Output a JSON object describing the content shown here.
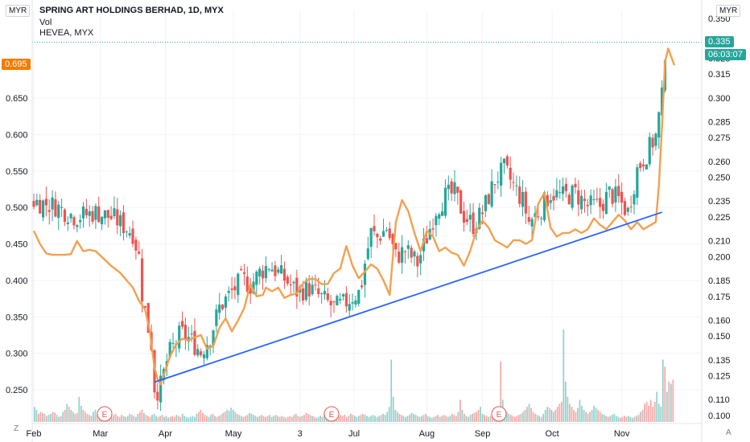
{
  "header": {
    "title": "SPRING ART HOLDINGS BERHAD, 1D, MYX",
    "volume_label": "Vol",
    "compare_label": "HEVEA, MYX"
  },
  "axes": {
    "left_currency": "MYR",
    "right_currency": "MYR",
    "corner_left": "Z",
    "corner_right": "A"
  },
  "badges": {
    "left_compare_price": "0.695",
    "right_price": "0.335",
    "countdown": "06:03:07",
    "compare_color": "#f57c00",
    "price_color": "#26a69a"
  },
  "chart_data": {
    "type": "candlestick",
    "left_axis": {
      "label": "HEVEA, MYX",
      "ticks": [
        0.25,
        0.3,
        0.35,
        0.4,
        0.45,
        0.5,
        0.55,
        0.6,
        0.65
      ],
      "ylim": [
        0.22,
        0.755
      ]
    },
    "right_axis": {
      "label": "SPRING ART",
      "ticks": [
        0.1,
        0.11,
        0.125,
        0.135,
        0.15,
        0.16,
        0.175,
        0.185,
        0.2,
        0.21,
        0.225,
        0.235,
        0.25,
        0.26,
        0.275,
        0.285,
        0.3,
        0.315,
        0.325,
        0.335,
        0.35
      ],
      "ylim": [
        0.0942,
        0.3548
      ]
    },
    "x_ticks": [
      "Feb",
      "Mar",
      "Apr",
      "May",
      "3",
      "Jul",
      "Aug",
      "Sep",
      "Oct",
      "Nov"
    ],
    "series": [
      {
        "name": "SPRING ART HOLDINGS BERHAD",
        "up_color": "#26a69a",
        "down_color": "#ef5350",
        "close_path": [
          [
            0,
            0.235
          ],
          [
            14,
            0.232
          ],
          [
            27,
            0.225
          ],
          [
            40,
            0.228
          ],
          [
            52,
            0.224
          ],
          [
            64,
            0.215
          ],
          [
            68,
            0.2
          ],
          [
            70,
            0.177
          ],
          [
            73,
            0.16
          ],
          [
            76,
            0.145
          ],
          [
            78,
            0.118
          ],
          [
            81,
            0.115
          ],
          [
            87,
            0.138
          ],
          [
            95,
            0.152
          ],
          [
            101,
            0.148
          ],
          [
            108,
            0.14
          ],
          [
            114,
            0.15
          ],
          [
            120,
            0.168
          ],
          [
            128,
            0.178
          ],
          [
            135,
            0.186
          ],
          [
            140,
            0.182
          ],
          [
            146,
            0.19
          ],
          [
            152,
            0.195
          ],
          [
            160,
            0.188
          ],
          [
            170,
            0.178
          ],
          [
            178,
            0.18
          ],
          [
            186,
            0.174
          ],
          [
            194,
            0.168
          ],
          [
            200,
            0.17
          ],
          [
            206,
            0.175
          ],
          [
            211,
            0.178
          ],
          [
            214,
            0.196
          ],
          [
            218,
            0.215
          ],
          [
            222,
            0.212
          ],
          [
            228,
            0.218
          ],
          [
            234,
            0.2
          ],
          [
            240,
            0.204
          ],
          [
            248,
            0.196
          ],
          [
            254,
            0.212
          ],
          [
            260,
            0.23
          ],
          [
            266,
            0.238
          ],
          [
            272,
            0.24
          ],
          [
            278,
            0.226
          ],
          [
            284,
            0.22
          ],
          [
            290,
            0.228
          ],
          [
            298,
            0.248
          ],
          [
            304,
            0.255
          ],
          [
            310,
            0.245
          ],
          [
            316,
            0.235
          ],
          [
            320,
            0.222
          ],
          [
            326,
            0.228
          ],
          [
            334,
            0.24
          ],
          [
            342,
            0.238
          ],
          [
            350,
            0.24
          ],
          [
            358,
            0.232
          ],
          [
            366,
            0.232
          ],
          [
            372,
            0.24
          ],
          [
            378,
            0.236
          ],
          [
            384,
            0.228
          ],
          [
            390,
            0.255
          ],
          [
            396,
            0.265
          ],
          [
            402,
            0.276
          ],
          [
            406,
            0.3
          ],
          [
            408,
            0.33
          ]
        ]
      },
      {
        "name": "HEVEA, MYX",
        "color": "#f4a04f",
        "values": [
          [
            0,
            0.468
          ],
          [
            4,
            0.45
          ],
          [
            8,
            0.437
          ],
          [
            12,
            0.435
          ],
          [
            20,
            0.435
          ],
          [
            24,
            0.436
          ],
          [
            28,
            0.454
          ],
          [
            32,
            0.44
          ],
          [
            36,
            0.442
          ],
          [
            40,
            0.44
          ],
          [
            44,
            0.432
          ],
          [
            50,
            0.42
          ],
          [
            56,
            0.41
          ],
          [
            60,
            0.4
          ],
          [
            64,
            0.39
          ],
          [
            68,
            0.372
          ],
          [
            72,
            0.36
          ],
          [
            75,
            0.33
          ],
          [
            78,
            0.28
          ],
          [
            80,
            0.265
          ],
          [
            82,
            0.257
          ],
          [
            84,
            0.27
          ],
          [
            88,
            0.296
          ],
          [
            92,
            0.312
          ],
          [
            96,
            0.32
          ],
          [
            100,
            0.318
          ],
          [
            104,
            0.322
          ],
          [
            108,
            0.325
          ],
          [
            112,
            0.306
          ],
          [
            116,
            0.31
          ],
          [
            120,
            0.335
          ],
          [
            124,
            0.348
          ],
          [
            128,
            0.33
          ],
          [
            132,
            0.345
          ],
          [
            136,
            0.362
          ],
          [
            140,
            0.395
          ],
          [
            144,
            0.378
          ],
          [
            148,
            0.38
          ],
          [
            150,
            0.39
          ],
          [
            154,
            0.385
          ],
          [
            158,
            0.39
          ],
          [
            162,
            0.376
          ],
          [
            166,
            0.38
          ],
          [
            170,
            0.382
          ],
          [
            174,
            0.396
          ],
          [
            178,
            0.402
          ],
          [
            182,
            0.402
          ],
          [
            186,
            0.395
          ],
          [
            190,
            0.395
          ],
          [
            194,
            0.41
          ],
          [
            198,
            0.416
          ],
          [
            202,
            0.447
          ],
          [
            206,
            0.42
          ],
          [
            210,
            0.403
          ],
          [
            214,
            0.412
          ],
          [
            218,
            0.422
          ],
          [
            222,
            0.416
          ],
          [
            226,
            0.4
          ],
          [
            230,
            0.38
          ],
          [
            234,
            0.48
          ],
          [
            238,
            0.51
          ],
          [
            242,
            0.495
          ],
          [
            246,
            0.465
          ],
          [
            250,
            0.44
          ],
          [
            254,
            0.468
          ],
          [
            258,
            0.46
          ],
          [
            262,
            0.44
          ],
          [
            266,
            0.445
          ],
          [
            270,
            0.438
          ],
          [
            274,
            0.435
          ],
          [
            278,
            0.42
          ],
          [
            282,
            0.44
          ],
          [
            286,
            0.468
          ],
          [
            290,
            0.482
          ],
          [
            294,
            0.472
          ],
          [
            298,
            0.455
          ],
          [
            302,
            0.45
          ],
          [
            306,
            0.445
          ],
          [
            310,
            0.455
          ],
          [
            314,
            0.455
          ],
          [
            318,
            0.45
          ],
          [
            322,
            0.455
          ],
          [
            326,
            0.505
          ],
          [
            330,
            0.52
          ],
          [
            334,
            0.472
          ],
          [
            338,
            0.46
          ],
          [
            342,
            0.465
          ],
          [
            346,
            0.465
          ],
          [
            350,
            0.47
          ],
          [
            354,
            0.465
          ],
          [
            358,
            0.47
          ],
          [
            362,
            0.485
          ],
          [
            366,
            0.476
          ],
          [
            370,
            0.47
          ],
          [
            374,
            0.48
          ],
          [
            378,
            0.49
          ],
          [
            382,
            0.482
          ],
          [
            386,
            0.47
          ],
          [
            390,
            0.48
          ],
          [
            394,
            0.47
          ],
          [
            398,
            0.475
          ],
          [
            402,
            0.48
          ],
          [
            404,
            0.53
          ],
          [
            406,
            0.61
          ],
          [
            408,
            0.7
          ],
          [
            410,
            0.718
          ],
          [
            414,
            0.695
          ]
        ]
      }
    ],
    "volume_relative": [
      0.15,
      0.12,
      0.08,
      0.1,
      0.09,
      0.08,
      0.06,
      0.07,
      0.08,
      0.1,
      0.09,
      0.07,
      0.05,
      0.06,
      0.1,
      0.12,
      0.18,
      0.15,
      0.12,
      0.1,
      0.08,
      0.09,
      0.25,
      0.16,
      0.12,
      0.1,
      0.08,
      0.07,
      0.06,
      0.1,
      0.12,
      0.08,
      0.07,
      0.09,
      0.11,
      0.08,
      0.07,
      0.06,
      0.05,
      0.07,
      0.08,
      0.06,
      0.05,
      0.07,
      0.06,
      0.05,
      0.06,
      0.08,
      0.07,
      0.06,
      0.05,
      0.08,
      0.1,
      0.12,
      0.09,
      0.07,
      0.06,
      0.05,
      0.07,
      0.08,
      0.06,
      0.05,
      0.06,
      0.07,
      0.05,
      0.06,
      0.04,
      0.05,
      0.06,
      0.05,
      0.07,
      0.06,
      0.05,
      0.08,
      0.06,
      0.05,
      0.04,
      0.05,
      0.06,
      0.05,
      0.08,
      0.1,
      0.12,
      0.09,
      0.07,
      0.06,
      0.05,
      0.07,
      0.08,
      0.06,
      0.05,
      0.06,
      0.07,
      0.09,
      0.1,
      0.12,
      0.11,
      0.14,
      0.12,
      0.1,
      0.08,
      0.07,
      0.06,
      0.05,
      0.06,
      0.07,
      0.09,
      0.08,
      0.07,
      0.06,
      0.05,
      0.06,
      0.07,
      0.06,
      0.05,
      0.06,
      0.07,
      0.05,
      0.06,
      0.07,
      0.06,
      0.05,
      0.06,
      0.05,
      0.04,
      0.05,
      0.06,
      0.05,
      0.07,
      0.08,
      0.06,
      0.05,
      0.06,
      0.07,
      0.09,
      0.08,
      0.07,
      0.06,
      0.05,
      0.04,
      0.05,
      0.06,
      0.05,
      0.08,
      0.09,
      0.06,
      0.05,
      0.06,
      0.07,
      0.06,
      0.05,
      0.07,
      0.06,
      0.07,
      0.05,
      0.06,
      0.08,
      0.07,
      0.06,
      0.05,
      0.06,
      0.07,
      0.08,
      0.07,
      0.06,
      0.05,
      0.06,
      0.07,
      0.06,
      0.05,
      0.06,
      0.07,
      0.08,
      0.07,
      0.1,
      0.15,
      0.62,
      0.25,
      0.12,
      0.1,
      0.08,
      0.07,
      0.06,
      0.05,
      0.06,
      0.07,
      0.09,
      0.08,
      0.07,
      0.06,
      0.05,
      0.06,
      0.07,
      0.08,
      0.06,
      0.05,
      0.04,
      0.05,
      0.06,
      0.07,
      0.05,
      0.06,
      0.07,
      0.06,
      0.05,
      0.06,
      0.08,
      0.07,
      0.06,
      0.1,
      0.22,
      0.12,
      0.08,
      0.06,
      0.05,
      0.07,
      0.08,
      0.09,
      0.1,
      0.12,
      0.15,
      0.08,
      0.07,
      0.06,
      0.05,
      0.06,
      0.07,
      0.09,
      0.08,
      0.07,
      0.6,
      0.22,
      0.12,
      0.1,
      0.08,
      0.07,
      0.06,
      0.05,
      0.06,
      0.07,
      0.08,
      0.1,
      0.12,
      0.15,
      0.18,
      0.14,
      0.1,
      0.08,
      0.07,
      0.06,
      0.05,
      0.08,
      0.12,
      0.15,
      0.14,
      0.12,
      0.1,
      0.12,
      0.15,
      0.18,
      0.2,
      0.92,
      0.4,
      0.25,
      0.18,
      0.15,
      0.12,
      0.1,
      0.14,
      0.22,
      0.16,
      0.12,
      0.1,
      0.08,
      0.1,
      0.12,
      0.16,
      0.14,
      0.12,
      0.1,
      0.08,
      0.07,
      0.06,
      0.05,
      0.06,
      0.07,
      0.08,
      0.06,
      0.05,
      0.04,
      0.05,
      0.06,
      0.05,
      0.06,
      0.05,
      0.04,
      0.05,
      0.06,
      0.07,
      0.1,
      0.12,
      0.18,
      0.2,
      0.16,
      0.22,
      0.15,
      0.2,
      0.3,
      0.18,
      0.15,
      0.62,
      0.55,
      0.3,
      0.4,
      0.38,
      0.42
    ],
    "volume_up_flags": "mixed",
    "trendline": {
      "from": [
        78,
        0.121
      ],
      "to": [
        406,
        0.228
      ],
      "color": "#2962ff"
    },
    "current_price_line": 0.335,
    "earnings_markers": [
      "E",
      "E",
      "E"
    ]
  }
}
